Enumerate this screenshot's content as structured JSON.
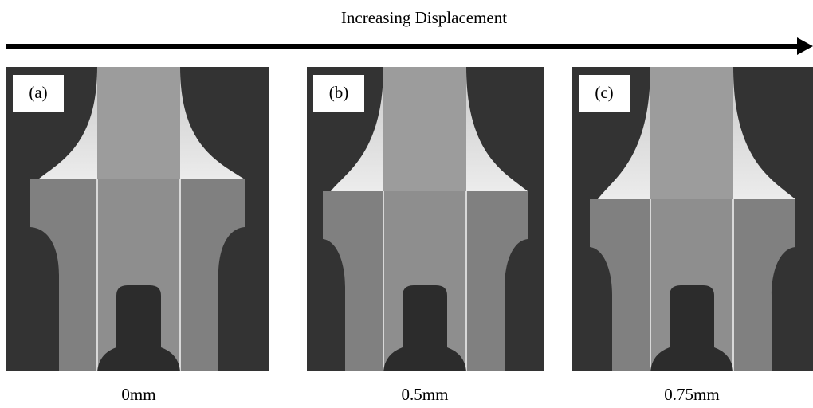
{
  "header": {
    "title": "Increasing Displacement"
  },
  "panels": [
    {
      "label": "(a)",
      "caption": "0mm"
    },
    {
      "label": "(b)",
      "caption": "0.5mm"
    },
    {
      "label": "(c)",
      "caption": "0.75mm"
    }
  ]
}
